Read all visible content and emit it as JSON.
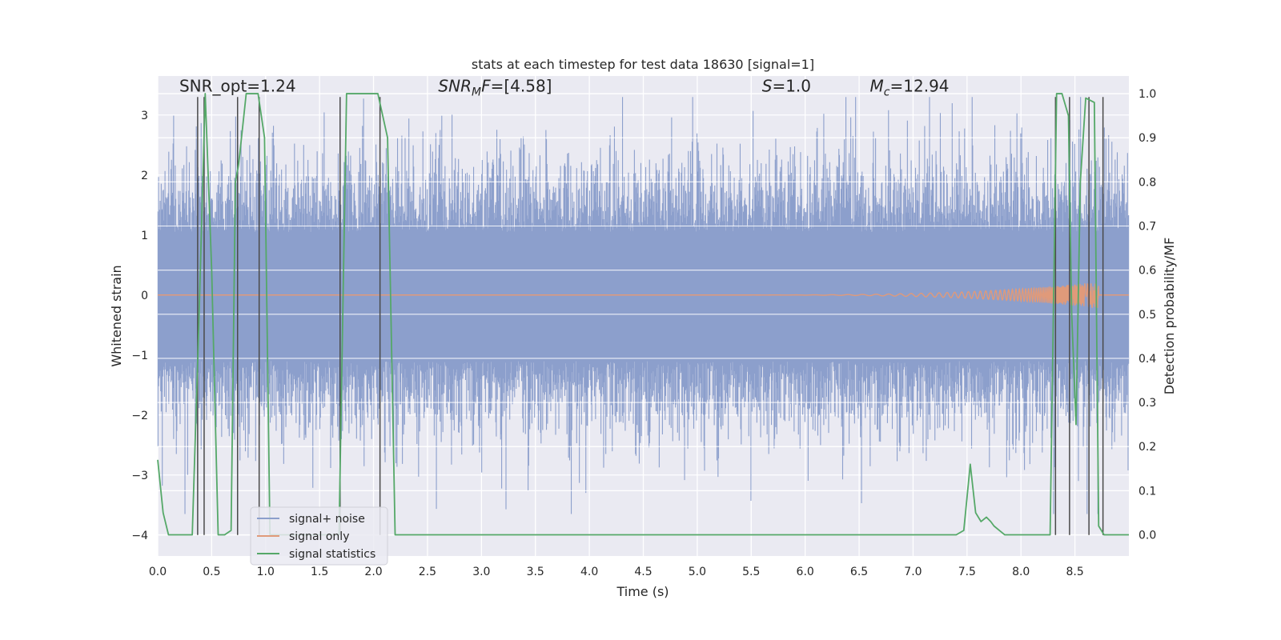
{
  "chart_data": {
    "type": "line",
    "title": "stats at each timestep for test data 18630 [signal=1]",
    "xlabel": "Time (s)",
    "ylabel": "Whitened strain",
    "y2label": "Detection probability/MF",
    "xlim": [
      0.0,
      9.0
    ],
    "ylim": [
      -4.35,
      3.65
    ],
    "y2lim": [
      -0.048,
      1.04
    ],
    "xticks": [
      "0.0",
      "0.5",
      "1.0",
      "1.5",
      "2.0",
      "2.5",
      "3.0",
      "3.5",
      "4.0",
      "4.5",
      "5.0",
      "5.5",
      "6.0",
      "6.5",
      "7.0",
      "7.5",
      "8.0",
      "8.5"
    ],
    "yticks": [
      "−4",
      "−3",
      "−2",
      "−1",
      "0",
      "1",
      "2",
      "3"
    ],
    "y2ticks": [
      "0.0",
      "0.1",
      "0.2",
      "0.3",
      "0.4",
      "0.5",
      "0.6",
      "0.7",
      "0.8",
      "0.9",
      "1.0"
    ],
    "grid": true,
    "legend_position": "lower-left",
    "annotations": [
      {
        "base": "SNR_opt=1.24",
        "sub": "",
        "tail": "",
        "t": 0.2,
        "y": 3.35
      },
      {
        "base": "SNR",
        "sub": "M",
        "tail": "F=[4.58]",
        "t": 2.6,
        "y": 3.35
      },
      {
        "base": "S",
        "sub": "",
        "tail": "=1.0",
        "t": 5.6,
        "y": 3.35
      },
      {
        "base": "M",
        "sub": "c",
        "tail": "=12.94",
        "t": 6.6,
        "y": 3.35
      }
    ],
    "series": [
      {
        "name": "signal+ noise",
        "color": "#8c9fcc",
        "axis": "left",
        "envelope_upper": 2.7,
        "envelope_lower": -2.7,
        "band_upper": 1.05,
        "band_lower": -1.1,
        "n_samples": 9000
      },
      {
        "name": "signal only",
        "color": "#e09a7a",
        "axis": "left",
        "chirp_start": 5.0,
        "chirp_end": 8.72,
        "peak_amplitude": 0.22
      },
      {
        "name": "signal statistics",
        "color": "#55a868",
        "axis": "right",
        "x": [
          0.0,
          0.05,
          0.1,
          0.2,
          0.3,
          0.32,
          0.38,
          0.44,
          0.5,
          0.56,
          0.58,
          0.62,
          0.68,
          0.72,
          0.75,
          0.82,
          0.93,
          0.99,
          1.04,
          1.12,
          1.6,
          1.68,
          1.75,
          2.04,
          2.13,
          2.2,
          2.25,
          7.4,
          7.47,
          7.53,
          7.58,
          7.63,
          7.68,
          7.72,
          7.75,
          7.8,
          7.85,
          7.9,
          8.0,
          8.1,
          8.27,
          8.33,
          8.38,
          8.44,
          8.47,
          8.51,
          8.55,
          8.6,
          8.68,
          8.72,
          8.77,
          8.82,
          8.9,
          9.0
        ],
        "y": [
          0.17,
          0.05,
          0.0,
          0.0,
          0.0,
          0.0,
          0.47,
          1.0,
          0.6,
          0.0,
          0.0,
          0.0,
          0.01,
          0.8,
          0.84,
          1.0,
          1.0,
          0.9,
          0.0,
          0.0,
          0.0,
          0.0,
          1.0,
          1.0,
          0.9,
          0.0,
          0.0,
          0.0,
          0.01,
          0.16,
          0.05,
          0.03,
          0.04,
          0.03,
          0.02,
          0.01,
          0.0,
          0.0,
          0.0,
          0.0,
          0.0,
          1.0,
          1.0,
          0.95,
          0.5,
          0.25,
          0.8,
          0.99,
          0.98,
          0.02,
          0.0,
          0.0,
          0.0,
          0.0
        ]
      },
      {
        "name": "",
        "color": "#4a4a4a",
        "axis": "left",
        "kind": "vlines",
        "x": [
          0.37,
          0.43,
          0.74,
          0.94,
          1.69,
          2.06,
          8.32,
          8.45,
          8.63,
          8.76
        ],
        "ymin": -4.0,
        "ymax": 3.3
      }
    ]
  }
}
